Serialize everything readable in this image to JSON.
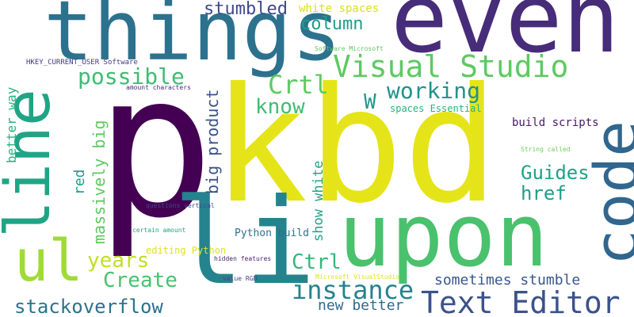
{
  "words": [
    {
      "key": "p",
      "text": "p",
      "color": "#440154"
    },
    {
      "key": "kbd",
      "text": "kbd",
      "color": "#e5e419"
    },
    {
      "key": "even",
      "text": "even",
      "color": "#472c7a"
    },
    {
      "key": "things",
      "text": "things",
      "color": "#2c728e"
    },
    {
      "key": "upon",
      "text": "upon",
      "color": "#4ac16d"
    },
    {
      "key": "code",
      "text": "code",
      "color": "#31668e"
    },
    {
      "key": "li",
      "text": "li",
      "color": "#25838e"
    },
    {
      "key": "line",
      "text": "line",
      "color": "#20a486"
    },
    {
      "key": "ul",
      "text": "ul",
      "color": "#a0da39"
    },
    {
      "key": "text_editor",
      "text": "Text Editor",
      "color": "#3b528b"
    },
    {
      "key": "visual_studio",
      "text": "Visual Studio",
      "color": "#5ec962"
    },
    {
      "key": "instance",
      "text": "instance",
      "color": "#26828e"
    },
    {
      "key": "crtl",
      "text": "Crtl",
      "color": "#5ec962"
    },
    {
      "key": "working",
      "text": "working",
      "color": "#21918c"
    },
    {
      "key": "possible",
      "text": "possible",
      "color": "#3fbc73"
    },
    {
      "key": "know",
      "text": "know",
      "color": "#3fbc73"
    },
    {
      "key": "stackoverflow",
      "text": "stackoverflow",
      "color": "#2c728e"
    },
    {
      "key": "create",
      "text": "Create",
      "color": "#4ac16d"
    },
    {
      "key": "years",
      "text": "years",
      "color": "#c2df23"
    },
    {
      "key": "ctrl",
      "text": "Ctrl",
      "color": "#35b779"
    },
    {
      "key": "guides",
      "text": "Guides",
      "color": "#1fa187"
    },
    {
      "key": "href",
      "text": "href",
      "color": "#1f9e89"
    },
    {
      "key": "w",
      "text": "W",
      "color": "#1f988b"
    },
    {
      "key": "stumbled",
      "text": "stumbled",
      "color": "#3e4989"
    },
    {
      "key": "column",
      "text": "column",
      "color": "#1f9e89"
    },
    {
      "key": "sometimes_stumble",
      "text": "sometimes stumble",
      "color": "#39568c"
    },
    {
      "key": "new_better",
      "text": "new better",
      "color": "#31688e"
    },
    {
      "key": "massively_big",
      "text": "massively big",
      "color": "#5ec962"
    },
    {
      "key": "big_product",
      "text": "big product",
      "color": "#3b528b"
    },
    {
      "key": "red",
      "text": "red",
      "color": "#1f9e89"
    },
    {
      "key": "show_white",
      "text": "show white",
      "color": "#20a486"
    },
    {
      "key": "better_way",
      "text": "better way",
      "color": "#2ab07f"
    },
    {
      "key": "white_spaces",
      "text": "white spaces",
      "color": "#d8e219"
    },
    {
      "key": "build_scripts",
      "text": "build scripts",
      "color": "#48186a"
    },
    {
      "key": "spaces_essential",
      "text": "spaces Essential",
      "color": "#2ab07f"
    },
    {
      "key": "python_build",
      "text": "Python build",
      "color": "#2c728e"
    },
    {
      "key": "editing_python",
      "text": "editing Python",
      "color": "#dde318"
    },
    {
      "key": "hkey",
      "text": "HKEY_CURRENT_USER Software",
      "color": "#453882"
    },
    {
      "key": "amount_characters",
      "text": "amount characters",
      "color": "#482878"
    },
    {
      "key": "software_microsoft",
      "text": "Software Microsoft",
      "color": "#5ec962"
    },
    {
      "key": "questions_vertical",
      "text": "questions vertical",
      "color": "#3e4989"
    },
    {
      "key": "certain_amount",
      "text": "certain amount",
      "color": "#20a486"
    },
    {
      "key": "hidden_features",
      "text": "hidden features",
      "color": "#482173"
    },
    {
      "key": "string_called",
      "text": "String called",
      "color": "#6ece58"
    },
    {
      "key": "value_rgb",
      "text": "value RGB",
      "color": "#414487"
    },
    {
      "key": "microsoft_visualstudio",
      "text": "Microsoft VisualStudio",
      "color": "#dde318"
    }
  ]
}
